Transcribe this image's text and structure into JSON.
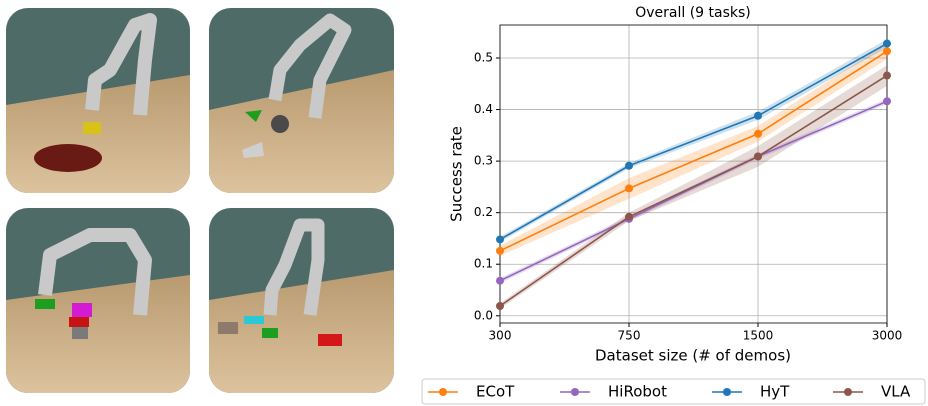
{
  "chart_data": {
    "type": "line",
    "title": "Overall (9 tasks)",
    "x_label": "Dataset size (# of demos)",
    "y_label": "Success rate",
    "categories": [
      "300",
      "750",
      "1500",
      "3000"
    ],
    "series": [
      {
        "name": "ECoT",
        "color": "#ff7f0e",
        "values": [
          0.126,
          0.247,
          0.353,
          0.513
        ],
        "errors": [
          0.01,
          0.02,
          0.015,
          0.015
        ]
      },
      {
        "name": "HiRobot",
        "color": "#9467bd",
        "values": [
          0.068,
          0.188,
          0.309,
          0.416
        ],
        "errors": [
          0.005,
          0.005,
          0.005,
          0.005
        ]
      },
      {
        "name": "HyT",
        "color": "#1f77b4",
        "values": [
          0.148,
          0.291,
          0.388,
          0.528
        ],
        "errors": [
          0.005,
          0.005,
          0.008,
          0.008
        ]
      },
      {
        "name": "VLA",
        "color": "#8c564b",
        "values": [
          0.019,
          0.192,
          0.309,
          0.466
        ],
        "errors": [
          0.005,
          0.008,
          0.02,
          0.02
        ]
      }
    ],
    "ylim": [
      -0.014,
      0.564
    ],
    "yticks": [
      {
        "value": 0,
        "label": "0.0"
      },
      0.1,
      0.2,
      0.3,
      0.4,
      0.5
    ],
    "grid": true,
    "legend": "bottom"
  }
}
